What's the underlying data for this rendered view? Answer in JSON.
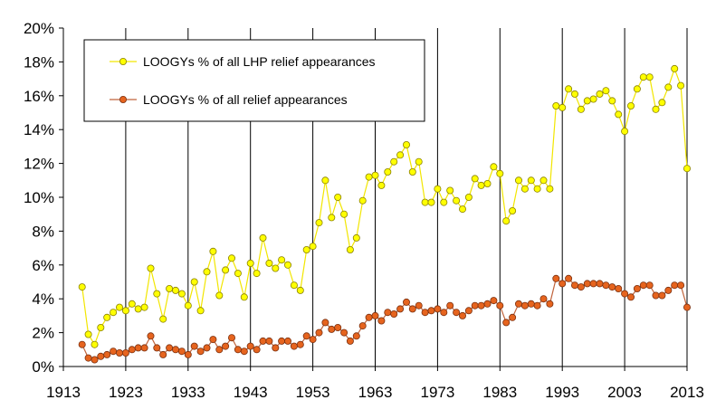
{
  "chart_data": {
    "type": "line",
    "title": "",
    "xlabel": "",
    "ylabel": "",
    "xlim": [
      1913,
      2013
    ],
    "ylim": [
      0,
      20
    ],
    "x_ticks": [
      "1913",
      "1923",
      "1933",
      "1943",
      "1953",
      "1963",
      "1973",
      "1983",
      "1993",
      "2003",
      "2013"
    ],
    "y_ticks": [
      "0%",
      "2%",
      "4%",
      "6%",
      "8%",
      "10%",
      "12%",
      "14%",
      "16%",
      "18%",
      "20%"
    ],
    "grid": "vertical lines at each year tick",
    "legend_position": "top-left",
    "series": [
      {
        "name": "LOOGYs % of all LHP relief appearances",
        "color": "#f2e600",
        "marker_fill": "#ffff00",
        "x": [
          1916,
          1917,
          1918,
          1919,
          1920,
          1921,
          1922,
          1923,
          1924,
          1925,
          1926,
          1927,
          1928,
          1929,
          1930,
          1931,
          1932,
          1933,
          1934,
          1935,
          1936,
          1937,
          1938,
          1939,
          1940,
          1941,
          1942,
          1943,
          1944,
          1945,
          1946,
          1947,
          1948,
          1949,
          1950,
          1951,
          1952,
          1953,
          1954,
          1955,
          1956,
          1957,
          1958,
          1959,
          1960,
          1961,
          1962,
          1963,
          1964,
          1965,
          1966,
          1967,
          1968,
          1969,
          1970,
          1971,
          1972,
          1973,
          1974,
          1975,
          1976,
          1977,
          1978,
          1979,
          1980,
          1981,
          1982,
          1983,
          1984,
          1985,
          1986,
          1987,
          1988,
          1989,
          1990,
          1991,
          1992,
          1993,
          1994,
          1995,
          1996,
          1997,
          1998,
          1999,
          2000,
          2001,
          2002,
          2003,
          2004,
          2005,
          2006,
          2007,
          2008,
          2009,
          2010,
          2011,
          2012,
          2013
        ],
        "values": [
          4.7,
          1.9,
          1.3,
          2.3,
          2.9,
          3.2,
          3.5,
          3.3,
          3.7,
          3.4,
          3.5,
          5.8,
          4.3,
          2.8,
          4.6,
          4.5,
          4.3,
          3.6,
          5.0,
          3.3,
          5.6,
          6.8,
          4.2,
          5.7,
          6.4,
          5.5,
          4.1,
          6.1,
          5.5,
          7.6,
          6.1,
          5.8,
          6.3,
          6.0,
          4.8,
          4.5,
          6.9,
          7.1,
          8.5,
          11.0,
          8.8,
          10.0,
          9.0,
          6.9,
          7.6,
          9.8,
          11.2,
          11.3,
          10.7,
          11.5,
          12.1,
          12.5,
          13.1,
          11.5,
          12.1,
          9.7,
          9.7,
          10.5,
          9.7,
          10.4,
          9.8,
          9.3,
          10.0,
          11.1,
          10.7,
          10.8,
          11.8,
          11.4,
          8.6,
          9.2,
          11.0,
          10.5,
          11.0,
          10.5,
          11.0,
          10.5,
          15.4,
          15.3,
          16.4,
          16.1,
          15.2,
          15.7,
          15.8,
          16.1,
          16.3,
          15.7,
          14.9,
          13.9,
          15.4,
          16.4,
          17.1,
          17.1,
          15.2,
          15.6,
          16.5,
          17.6,
          16.6,
          11.7
        ]
      },
      {
        "name": "LOOGYs % of all relief appearances",
        "color": "#c0643c",
        "marker_fill": "#e6641e",
        "x": [
          1916,
          1917,
          1918,
          1919,
          1920,
          1921,
          1922,
          1923,
          1924,
          1925,
          1926,
          1927,
          1928,
          1929,
          1930,
          1931,
          1932,
          1933,
          1934,
          1935,
          1936,
          1937,
          1938,
          1939,
          1940,
          1941,
          1942,
          1943,
          1944,
          1945,
          1946,
          1947,
          1948,
          1949,
          1950,
          1951,
          1952,
          1953,
          1954,
          1955,
          1956,
          1957,
          1958,
          1959,
          1960,
          1961,
          1962,
          1963,
          1964,
          1965,
          1966,
          1967,
          1968,
          1969,
          1970,
          1971,
          1972,
          1973,
          1974,
          1975,
          1976,
          1977,
          1978,
          1979,
          1980,
          1981,
          1982,
          1983,
          1984,
          1985,
          1986,
          1987,
          1988,
          1989,
          1990,
          1991,
          1992,
          1993,
          1994,
          1995,
          1996,
          1997,
          1998,
          1999,
          2000,
          2001,
          2002,
          2003,
          2004,
          2005,
          2006,
          2007,
          2008,
          2009,
          2010,
          2011,
          2012,
          2013
        ],
        "values": [
          1.3,
          0.5,
          0.4,
          0.6,
          0.7,
          0.9,
          0.8,
          0.8,
          1.0,
          1.1,
          1.1,
          1.8,
          1.1,
          0.7,
          1.1,
          1.0,
          0.9,
          0.7,
          1.2,
          0.9,
          1.1,
          1.6,
          1.0,
          1.2,
          1.7,
          1.0,
          0.9,
          1.2,
          1.0,
          1.5,
          1.5,
          1.1,
          1.5,
          1.5,
          1.2,
          1.3,
          1.8,
          1.6,
          2.0,
          2.6,
          2.2,
          2.3,
          2.0,
          1.5,
          1.8,
          2.4,
          2.9,
          3.0,
          2.7,
          3.2,
          3.1,
          3.4,
          3.8,
          3.4,
          3.6,
          3.2,
          3.3,
          3.4,
          3.2,
          3.6,
          3.2,
          3.0,
          3.3,
          3.6,
          3.6,
          3.7,
          3.9,
          3.6,
          2.6,
          2.9,
          3.7,
          3.6,
          3.7,
          3.6,
          4.0,
          3.7,
          5.2,
          4.9,
          5.2,
          4.8,
          4.7,
          4.9,
          4.9,
          4.9,
          4.8,
          4.7,
          4.6,
          4.3,
          4.1,
          4.6,
          4.8,
          4.8,
          4.2,
          4.2,
          4.5,
          4.8,
          4.8,
          3.5
        ]
      }
    ]
  }
}
